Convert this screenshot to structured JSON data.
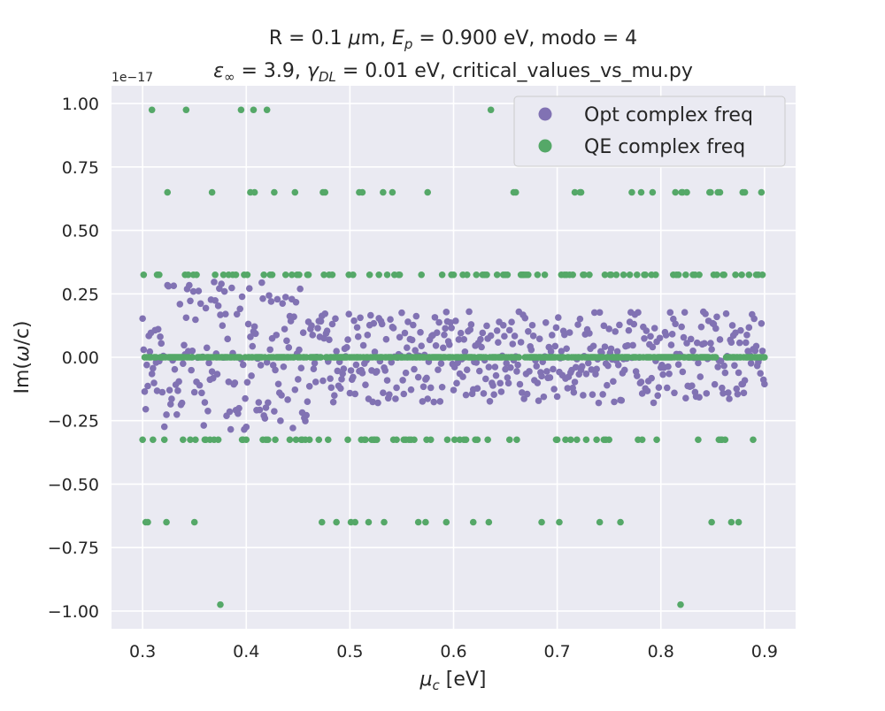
{
  "chart_data": {
    "type": "scatter",
    "title_line1": "R = 0.1 μm, E_p = 0.900 eV, modo = 4",
    "title_line2": "ε_∞ = 3.9, γ_DL = 0.01 eV, critical_values_vs_mu.py",
    "xlabel": "μ_c [eV]",
    "ylabel": "Im(ω/c)",
    "y_offset_text": "1e−17",
    "xlim": [
      0.27,
      0.93
    ],
    "ylim": [
      -1.07,
      1.07
    ],
    "xticks": [
      "0.3",
      "0.4",
      "0.5",
      "0.6",
      "0.7",
      "0.8",
      "0.9"
    ],
    "yticks": [
      "−1.00",
      "−0.75",
      "−0.50",
      "−0.25",
      "0.00",
      "0.25",
      "0.50",
      "0.75",
      "1.00"
    ],
    "grid": true,
    "legend_position": "top-right",
    "x_range": [
      0.3,
      0.9
    ],
    "points_per_series": 601,
    "series": [
      {
        "name": "Opt complex freq",
        "color": "#8172b3",
        "description": "noise around 0, amplitude ~0.3 for mu<0.46, ~0.18 for mu>=0.46"
      },
      {
        "name": "QE complex freq",
        "color": "#55a868",
        "levels": [
          0,
          0.325,
          -0.325,
          0.65,
          -0.65,
          0.975,
          -0.975
        ]
      }
    ]
  }
}
